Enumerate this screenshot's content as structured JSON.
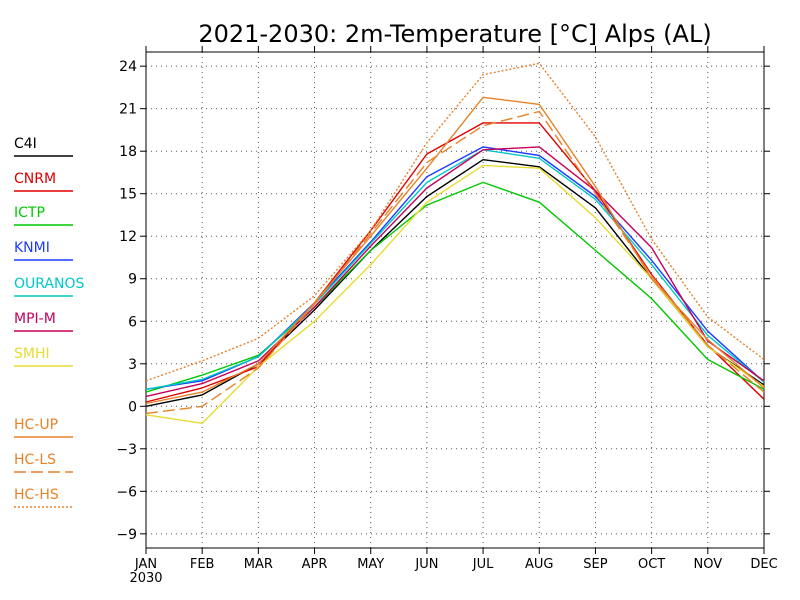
{
  "chart_data": {
    "type": "line",
    "title": "2021-2030: 2m-Temperature [°C] Alps (AL)",
    "xlabel": "",
    "ylabel": "",
    "categories": [
      "JAN",
      "FEB",
      "MAR",
      "APR",
      "MAY",
      "JUN",
      "JUL",
      "AUG",
      "SEP",
      "OCT",
      "NOV",
      "DEC"
    ],
    "x_sublabel": "2030",
    "ylim": [
      -10,
      25
    ],
    "yticks": [
      24,
      21,
      18,
      15,
      12,
      9,
      6,
      3,
      0,
      -3,
      -6,
      -9
    ],
    "ytick_labels": [
      "24",
      "21",
      "18",
      "15",
      "12",
      "9",
      "6",
      "3",
      "0",
      "−3",
      "−6",
      "−9"
    ],
    "grid": true,
    "legend_position": "left",
    "series": [
      {
        "name": "C4I",
        "color": "#000000",
        "dash": "solid",
        "values": [
          0.0,
          0.8,
          3.0,
          6.8,
          11.0,
          14.8,
          17.4,
          16.9,
          14.0,
          9.0,
          4.2,
          1.5
        ]
      },
      {
        "name": "CNRM",
        "color": "#e00000",
        "dash": "solid",
        "values": [
          0.3,
          1.3,
          2.8,
          7.3,
          12.4,
          17.8,
          20.0,
          20.0,
          15.2,
          9.3,
          4.3,
          0.5
        ]
      },
      {
        "name": "ICTP",
        "color": "#00c800",
        "dash": "solid",
        "values": [
          1.0,
          2.2,
          3.6,
          7.0,
          11.0,
          14.2,
          15.8,
          14.4,
          11.0,
          7.6,
          3.3,
          1.2
        ]
      },
      {
        "name": "KNMI",
        "color": "#1e3cff",
        "dash": "solid",
        "values": [
          1.2,
          1.8,
          3.5,
          7.3,
          11.6,
          16.2,
          18.3,
          17.7,
          14.8,
          10.3,
          5.3,
          1.7
        ]
      },
      {
        "name": "OURANOS",
        "color": "#00c8c8",
        "dash": "solid",
        "values": [
          1.2,
          1.9,
          3.5,
          7.2,
          11.5,
          15.8,
          18.1,
          17.5,
          14.6,
          10.0,
          5.0,
          1.7
        ]
      },
      {
        "name": "MPI-M",
        "color": "#c8005a",
        "dash": "solid",
        "values": [
          0.7,
          1.6,
          3.2,
          7.0,
          11.3,
          15.4,
          18.1,
          18.3,
          15.2,
          11.2,
          4.6,
          1.8
        ]
      },
      {
        "name": "SMHI",
        "color": "#e6dc32",
        "dash": "solid",
        "values": [
          -0.6,
          -1.2,
          2.8,
          6.0,
          10.0,
          14.4,
          17.0,
          16.8,
          13.3,
          9.0,
          4.2,
          1.4
        ]
      },
      {
        "name": "HC-UP",
        "color": "#e68228",
        "dash": "solid",
        "values": [
          0.2,
          1.0,
          3.0,
          7.3,
          12.0,
          16.8,
          21.8,
          21.3,
          15.5,
          9.0,
          4.7,
          1.3
        ]
      },
      {
        "name": "HC-LS",
        "color": "#e68228",
        "dash": "longdash",
        "values": [
          -0.5,
          0.0,
          2.7,
          7.2,
          12.2,
          17.2,
          19.8,
          20.8,
          15.0,
          9.2,
          4.3,
          1.0
        ]
      },
      {
        "name": "HC-HS",
        "color": "#e68228",
        "dash": "dotted",
        "values": [
          1.8,
          3.2,
          4.8,
          7.8,
          12.4,
          18.6,
          23.4,
          24.2,
          19.0,
          11.8,
          6.3,
          3.3
        ]
      }
    ]
  }
}
